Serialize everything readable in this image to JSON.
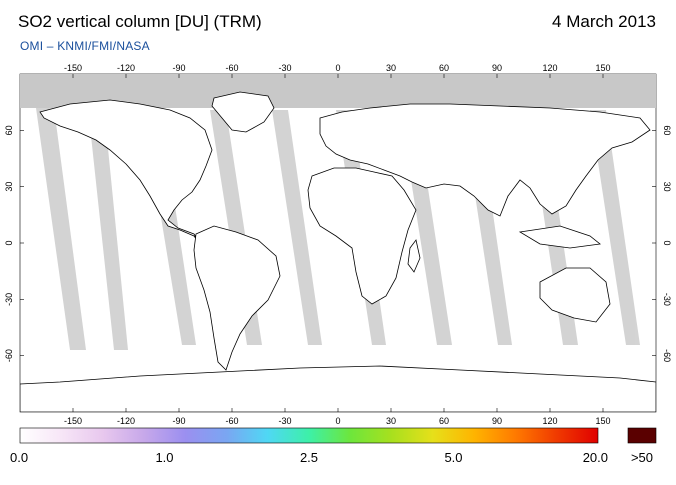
{
  "header": {
    "title": "SO2 vertical column [DU] (TRM)",
    "date": "4 March 2013",
    "subtitle": "OMI  –  KNMI/FMI/NASA"
  },
  "map": {
    "projection": "equirectangular",
    "lon_range": [
      -180,
      180
    ],
    "lat_range": [
      -90,
      90
    ],
    "lon_ticks": [
      "-150",
      "-120",
      "-90",
      "-60",
      "-30",
      "0",
      "30",
      "60",
      "90",
      "120",
      "150"
    ],
    "lat_ticks": [
      "60",
      "30",
      "0",
      "-30",
      "-60"
    ],
    "background_color": "#ffffff",
    "no_data_color": "#c8c8c8",
    "orbit_gap_color": "#cccccc",
    "coastline_color": "#000000"
  },
  "colorbar": {
    "labels": [
      "0.0",
      "1.0",
      "2.5",
      "5.0",
      "20.0"
    ],
    "overflow_label": ">50",
    "overflow_color": "#5a0000",
    "colors": [
      "#ffffff",
      "#f7e6f7",
      "#e8c8ee",
      "#c7a8ea",
      "#9b8ff0",
      "#7aa6f2",
      "#4fd8f4",
      "#3df0a8",
      "#6de63c",
      "#a8e01e",
      "#e6e01a",
      "#ffb400",
      "#ff7a00",
      "#f03a00",
      "#e00000"
    ]
  }
}
